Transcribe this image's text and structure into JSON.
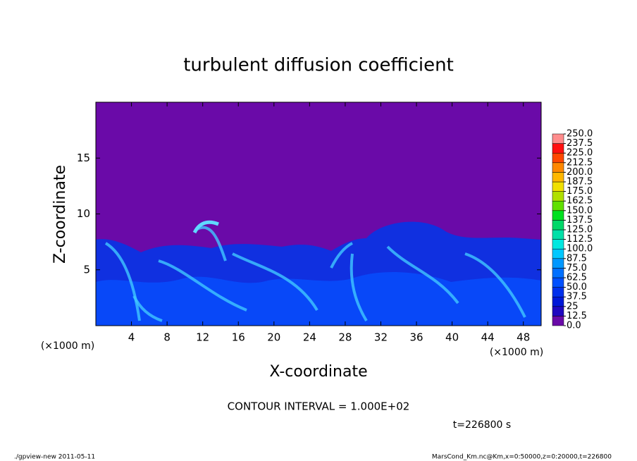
{
  "chart_data": {
    "type": "contour",
    "title": "turbulent diffusion coefficient",
    "xlabel": "X-coordinate",
    "ylabel": "Z-coordinate",
    "x_unit": "(×1000 m)",
    "x_unit_right": "(×1000 m)",
    "xlim": [
      0,
      50
    ],
    "ylim": [
      0,
      20
    ],
    "xticks": [
      4,
      8,
      12,
      16,
      20,
      24,
      28,
      32,
      36,
      40,
      44,
      48
    ],
    "yticks": [
      5,
      10,
      15
    ],
    "background_color": "#6a0aa8",
    "colorbar": {
      "ticks": [
        {
          "value": 0,
          "label": "0.0"
        },
        12.5,
        25,
        37.5,
        {
          "value": 50,
          "label": "50.0"
        },
        62.5,
        {
          "value": 75,
          "label": "75.0"
        },
        87.5,
        {
          "value": 100,
          "label": "100.0"
        },
        112.5,
        {
          "value": 125,
          "label": "125.0"
        },
        137.5,
        {
          "value": 150,
          "label": "150.0"
        },
        162.5,
        {
          "value": 175,
          "label": "175.0"
        },
        187.5,
        {
          "value": 200,
          "label": "200.0"
        },
        212.5,
        {
          "value": 225,
          "label": "225.0"
        },
        237.5,
        {
          "value": 250,
          "label": "250.0"
        }
      ],
      "colors": [
        "#6a0aa8",
        "#2008c0",
        "#0018d8",
        "#0030ec",
        "#0050ff",
        "#0070ff",
        "#0098ff",
        "#00c8ff",
        "#00e8e0",
        "#00e0a8",
        "#00d868",
        "#00e020",
        "#60e000",
        "#b0e000",
        "#f0e000",
        "#ffb800",
        "#ff8800",
        "#ff4800",
        "#ff1010",
        "#ff8c8c"
      ]
    },
    "annotation": "CONTOUR INTERVAL = 1.000E+02",
    "time_label": "t=226800 s",
    "footer_left": "./gpview-new   2011-05-11",
    "footer_right": "MarsCond_Km.nc@Km,x=0:50000,z=0:20000,t=226800"
  }
}
